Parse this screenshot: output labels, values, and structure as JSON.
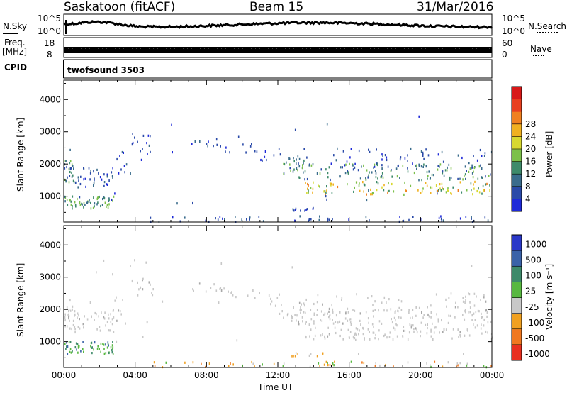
{
  "header": {
    "station": "Saskatoon (fitACF)",
    "beam": "Beam 15",
    "date": "31/Mar/2016"
  },
  "strips": {
    "nsky_label": "N.Sky",
    "nsearch_label": "N.Search",
    "counts_ticks": [
      "10^5",
      "10^0"
    ],
    "freq_label": "Freq.",
    "freq_unit": "[MHz]",
    "freq_ticks": [
      "18",
      "8"
    ],
    "nave_ticks": [
      "60",
      "0"
    ],
    "nave_label": "Nave",
    "cpid_label": "CPID",
    "cpid_value": "twofsound 3503"
  },
  "chart_data": [
    {
      "type": "heatmap",
      "name": "power",
      "ylabel": "Slant Range [km]",
      "yticks": [
        1000,
        2000,
        3000,
        4000
      ],
      "ylim": [
        200,
        4600
      ],
      "colorbar": {
        "label": "Power [dB]",
        "ticks": [
          "4",
          "8",
          "12",
          "16",
          "20",
          "24",
          "28"
        ],
        "colors": [
          "#1e2ad8",
          "#2a4aa8",
          "#3a6c8c",
          "#3e8a6a",
          "#7cc04a",
          "#d8d830",
          "#f0b020",
          "#f08020",
          "#e84020",
          "#d81818"
        ]
      },
      "regions": [
        {
          "t": [
            0,
            0.3
          ],
          "r": [
            1400,
            2100
          ],
          "v": "medium-high"
        },
        {
          "t": [
            0.8,
            2.8
          ],
          "r": [
            1300,
            2000
          ],
          "v": "low-medium"
        },
        {
          "t": [
            0,
            2.8
          ],
          "r": [
            650,
            1000
          ],
          "v": "medium"
        },
        {
          "t": [
            2.8,
            5.0
          ],
          "r": [
            1800,
            2900
          ],
          "v": "low"
        },
        {
          "t": [
            7.0,
            11.0
          ],
          "r": [
            2500,
            2800
          ],
          "v": "low"
        },
        {
          "t": [
            11.0,
            13.5
          ],
          "r": [
            1700,
            2500
          ],
          "v": "low-medium"
        },
        {
          "t": [
            13.0,
            24.0
          ],
          "r": [
            1000,
            2500
          ],
          "v": "medium-high"
        },
        {
          "t": [
            13.0,
            14.5
          ],
          "r": [
            550,
            650
          ],
          "v": "low"
        },
        {
          "t": [
            4.5,
            24.0
          ],
          "r": [
            200,
            400
          ],
          "v": "low"
        }
      ]
    },
    {
      "type": "heatmap",
      "name": "velocity",
      "xlabel": "Time UT",
      "ylabel": "Slant Range [km]",
      "xticks": [
        "00:00",
        "04:00",
        "08:00",
        "12:00",
        "16:00",
        "20:00",
        "00:00"
      ],
      "xlim": [
        0,
        24
      ],
      "yticks": [
        1000,
        2000,
        3000,
        4000
      ],
      "ylim": [
        200,
        4600
      ],
      "colorbar": {
        "label": "Velocity [m s⁻¹]",
        "ticks": [
          "1000",
          "500",
          "100",
          "25",
          "-25",
          "-100",
          "-500",
          "-1000"
        ],
        "colors": [
          "#2a38c8",
          "#3a62a8",
          "#3e8a6a",
          "#58b840",
          "#c8c8c8",
          "#f0a020",
          "#f07820",
          "#e83020"
        ]
      },
      "regions": [
        {
          "t": [
            0,
            2.8
          ],
          "r": [
            1300,
            2100
          ],
          "v": "ground scatter"
        },
        {
          "t": [
            0,
            2.8
          ],
          "r": [
            650,
            1000
          ],
          "v": "+100 to +500"
        },
        {
          "t": [
            2.8,
            5.0
          ],
          "r": [
            1800,
            2900
          ],
          "v": "ground scatter"
        },
        {
          "t": [
            7.0,
            13.0
          ],
          "r": [
            1700,
            2800
          ],
          "v": "ground scatter"
        },
        {
          "t": [
            13.0,
            24.0
          ],
          "r": [
            1100,
            2500
          ],
          "v": "ground scatter"
        },
        {
          "t": [
            4.5,
            24.0
          ],
          "r": [
            200,
            400
          ],
          "v": "-25 to -500"
        },
        {
          "t": [
            12.5,
            14.0
          ],
          "r": [
            550,
            650
          ],
          "v": "-100 to -500"
        }
      ]
    }
  ]
}
